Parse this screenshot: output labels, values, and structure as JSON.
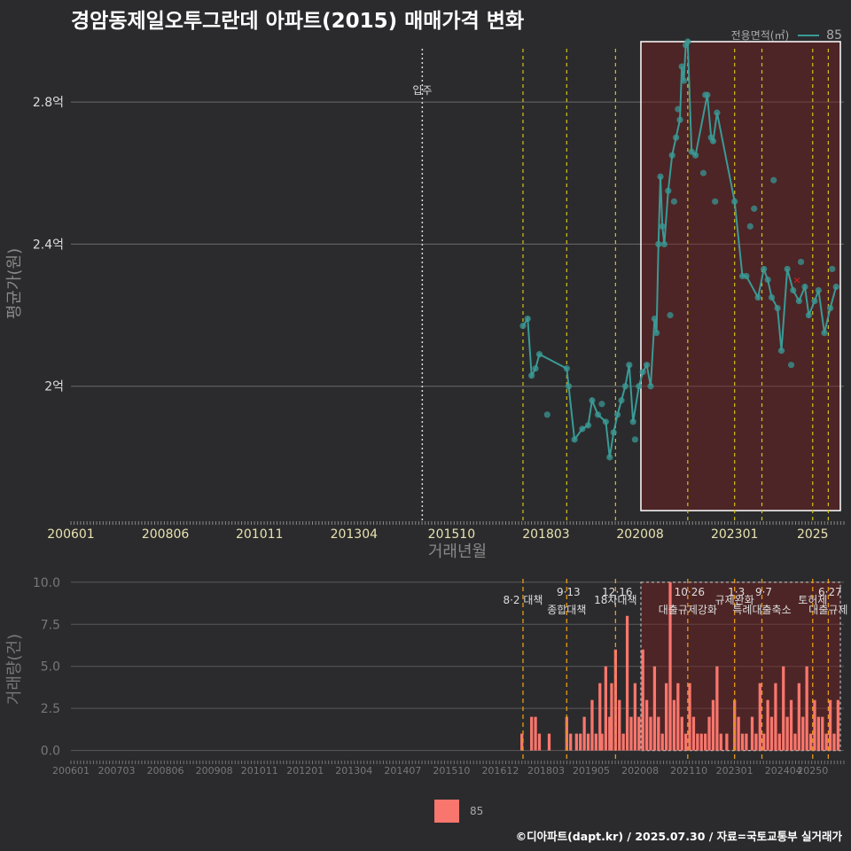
{
  "title": "경암동제일오투그란데 아파트(2015) 매매가격 변화",
  "legend": {
    "title": "전용면적(㎡)",
    "series_label": "85"
  },
  "footer": "©디아파트(dapt.kr) / 2025.07.30 / 자료=국토교통부 실거래가",
  "colors": {
    "line": "#3a9a96",
    "bar": "#f8766d",
    "background": "#2b2b2d"
  },
  "chart_data": [
    {
      "type": "line",
      "ylabel": "평균가(원)",
      "xlabel": "거래년월",
      "ylim": [
        1.62,
        2.95
      ],
      "yticks": [
        {
          "v": 2.0,
          "label": "2억"
        },
        {
          "v": 2.4,
          "label": "2.4억"
        },
        {
          "v": 2.8,
          "label": "2.8억"
        }
      ],
      "xlim": [
        2006.0,
        2025.8
      ],
      "xticks": [
        {
          "v": 2006.0,
          "label": "200601"
        },
        {
          "v": 2008.42,
          "label": "200806"
        },
        {
          "v": 2010.83,
          "label": "201011"
        },
        {
          "v": 2013.25,
          "label": "201304"
        },
        {
          "v": 2015.75,
          "label": "201510"
        },
        {
          "v": 2018.17,
          "label": "201803"
        },
        {
          "v": 2020.58,
          "label": "202008"
        },
        {
          "v": 2023.0,
          "label": "202301"
        },
        {
          "v": 2025.0,
          "label": "2025"
        }
      ],
      "movein": {
        "x": 2015.0,
        "label": "입주"
      },
      "event_lines": [
        2017.58,
        2018.7,
        2019.95,
        2021.8,
        2023.0,
        2023.7,
        2025.0,
        2025.4
      ],
      "highlight": {
        "x0": 2020.6,
        "x1": 2025.8,
        "y0": 1.65,
        "y1": 3.02
      },
      "series": [
        {
          "name": "85",
          "points": [
            [
              2017.58,
              2.17
            ],
            [
              2017.7,
              2.19
            ],
            [
              2017.8,
              2.03
            ],
            [
              2017.9,
              2.05
            ],
            [
              2018.0,
              2.09
            ],
            [
              2018.7,
              2.05
            ],
            [
              2018.75,
              2.0
            ],
            [
              2018.9,
              1.85
            ],
            [
              2019.1,
              1.88
            ],
            [
              2019.25,
              1.89
            ],
            [
              2019.35,
              1.96
            ],
            [
              2019.5,
              1.92
            ],
            [
              2019.7,
              1.9
            ],
            [
              2019.8,
              1.8
            ],
            [
              2019.9,
              1.87
            ],
            [
              2020.0,
              1.92
            ],
            [
              2020.1,
              1.96
            ],
            [
              2020.2,
              2.0
            ],
            [
              2020.3,
              2.06
            ],
            [
              2020.4,
              1.9
            ],
            [
              2020.55,
              2.0
            ],
            [
              2020.65,
              2.04
            ],
            [
              2020.75,
              2.06
            ],
            [
              2020.85,
              2.0
            ],
            [
              2020.95,
              2.19
            ],
            [
              2021.0,
              2.15
            ],
            [
              2021.05,
              2.4
            ],
            [
              2021.1,
              2.59
            ],
            [
              2021.15,
              2.45
            ],
            [
              2021.2,
              2.4
            ],
            [
              2021.3,
              2.55
            ],
            [
              2021.4,
              2.65
            ],
            [
              2021.5,
              2.7
            ],
            [
              2021.6,
              2.75
            ],
            [
              2021.65,
              2.9
            ],
            [
              2021.7,
              2.86
            ],
            [
              2021.75,
              2.96
            ],
            [
              2021.8,
              2.97
            ],
            [
              2021.9,
              2.66
            ],
            [
              2022.0,
              2.65
            ],
            [
              2022.3,
              2.82
            ],
            [
              2022.4,
              2.7
            ],
            [
              2022.45,
              2.69
            ],
            [
              2022.55,
              2.77
            ],
            [
              2023.0,
              2.52
            ],
            [
              2023.2,
              2.31
            ],
            [
              2023.3,
              2.31
            ],
            [
              2023.6,
              2.25
            ],
            [
              2023.75,
              2.33
            ],
            [
              2023.85,
              2.3
            ],
            [
              2023.95,
              2.25
            ],
            [
              2024.1,
              2.22
            ],
            [
              2024.2,
              2.1
            ],
            [
              2024.35,
              2.33
            ],
            [
              2024.5,
              2.27
            ],
            [
              2024.65,
              2.24
            ],
            [
              2024.8,
              2.28
            ],
            [
              2024.9,
              2.2
            ],
            [
              2025.05,
              2.24
            ],
            [
              2025.15,
              2.27
            ],
            [
              2025.3,
              2.15
            ],
            [
              2025.45,
              2.22
            ],
            [
              2025.6,
              2.28
            ]
          ],
          "scatter_only": [
            [
              2018.2,
              1.92
            ],
            [
              2019.6,
              1.95
            ],
            [
              2020.45,
              1.85
            ],
            [
              2021.35,
              2.2
            ],
            [
              2021.45,
              2.52
            ],
            [
              2021.55,
              2.78
            ],
            [
              2022.25,
              2.82
            ],
            [
              2022.5,
              2.52
            ],
            [
              2022.2,
              2.6
            ],
            [
              2023.4,
              2.45
            ],
            [
              2023.5,
              2.5
            ],
            [
              2024.0,
              2.58
            ],
            [
              2024.45,
              2.06
            ],
            [
              2024.7,
              2.35
            ],
            [
              2025.5,
              2.33
            ]
          ],
          "marker": {
            "x": 2024.6,
            "y": 2.3
          }
        }
      ]
    },
    {
      "type": "bar",
      "ylabel": "거래량(건)",
      "ylim": [
        -0.6,
        10.2
      ],
      "yticks": [
        {
          "v": 0,
          "label": "0.0"
        },
        {
          "v": 2.5,
          "label": "2.5"
        },
        {
          "v": 5,
          "label": "5.0"
        },
        {
          "v": 7.5,
          "label": "7.5"
        },
        {
          "v": 10,
          "label": "10.0"
        }
      ],
      "xticks": [
        {
          "v": 2006.0,
          "label": "200601"
        },
        {
          "v": 2007.17,
          "label": "200703"
        },
        {
          "v": 2008.42,
          "label": "200806"
        },
        {
          "v": 2009.67,
          "label": "200908"
        },
        {
          "v": 2010.83,
          "label": "201011"
        },
        {
          "v": 2012.0,
          "label": "201201"
        },
        {
          "v": 2013.25,
          "label": "201304"
        },
        {
          "v": 2014.5,
          "label": "201407"
        },
        {
          "v": 2015.75,
          "label": "201510"
        },
        {
          "v": 2017.0,
          "label": "201612"
        },
        {
          "v": 2018.17,
          "label": "201803"
        },
        {
          "v": 2019.33,
          "label": "201905"
        },
        {
          "v": 2020.58,
          "label": "202008"
        },
        {
          "v": 2021.83,
          "label": "202110"
        },
        {
          "v": 2023.0,
          "label": "202301"
        },
        {
          "v": 2024.25,
          "label": "202404"
        },
        {
          "v": 2025.0,
          "label": "20250"
        }
      ],
      "events": [
        {
          "x": 2017.58,
          "date": "",
          "label": "8·2 대책"
        },
        {
          "x": 2018.7,
          "date": "9·13",
          "label": "종합대책"
        },
        {
          "x": 2019.95,
          "date": "12·16",
          "label": "18차대책"
        },
        {
          "x": 2021.8,
          "date": "10·26",
          "label": "대출규제강화"
        },
        {
          "x": 2023.0,
          "date": "1·3",
          "label": "규제완화"
        },
        {
          "x": 2023.7,
          "date": "9·7",
          "label": "특례대출축소"
        },
        {
          "x": 2025.0,
          "date": "",
          "label": "토허제"
        },
        {
          "x": 2025.4,
          "date": "6·27",
          "label": "대출규제"
        }
      ],
      "highlight": {
        "x0": 2020.6,
        "x1": 2025.8
      },
      "x": [
        2017.55,
        2017.8,
        2017.9,
        2018.0,
        2018.25,
        2018.7,
        2018.8,
        2018.95,
        2019.05,
        2019.15,
        2019.25,
        2019.35,
        2019.45,
        2019.55,
        2019.6,
        2019.7,
        2019.8,
        2019.85,
        2019.95,
        2020.05,
        2020.15,
        2020.25,
        2020.35,
        2020.45,
        2020.55,
        2020.65,
        2020.75,
        2020.85,
        2020.95,
        2021.05,
        2021.15,
        2021.25,
        2021.35,
        2021.45,
        2021.55,
        2021.65,
        2021.75,
        2021.85,
        2021.95,
        2022.05,
        2022.15,
        2022.25,
        2022.35,
        2022.45,
        2022.55,
        2022.65,
        2022.8,
        2023.0,
        2023.1,
        2023.2,
        2023.3,
        2023.45,
        2023.55,
        2023.65,
        2023.75,
        2023.85,
        2023.95,
        2024.05,
        2024.15,
        2024.25,
        2024.35,
        2024.45,
        2024.55,
        2024.65,
        2024.75,
        2024.85,
        2024.95,
        2025.05,
        2025.15,
        2025.25,
        2025.35,
        2025.45,
        2025.55,
        2025.65
      ],
      "values": [
        1,
        2,
        2,
        1,
        1,
        2,
        1,
        1,
        1,
        2,
        1,
        3,
        1,
        4,
        1,
        5,
        2,
        4,
        6,
        3,
        1,
        8,
        2,
        4,
        2,
        6,
        3,
        2,
        5,
        2,
        1,
        4,
        10,
        3,
        4,
        2,
        1,
        4,
        2,
        1,
        1,
        1,
        2,
        3,
        5,
        1,
        1,
        3,
        2,
        1,
        1,
        2,
        1,
        4,
        1,
        3,
        2,
        4,
        1,
        5,
        2,
        3,
        1,
        4,
        2,
        5,
        1,
        3,
        2,
        2,
        1,
        3,
        1,
        3
      ]
    }
  ]
}
